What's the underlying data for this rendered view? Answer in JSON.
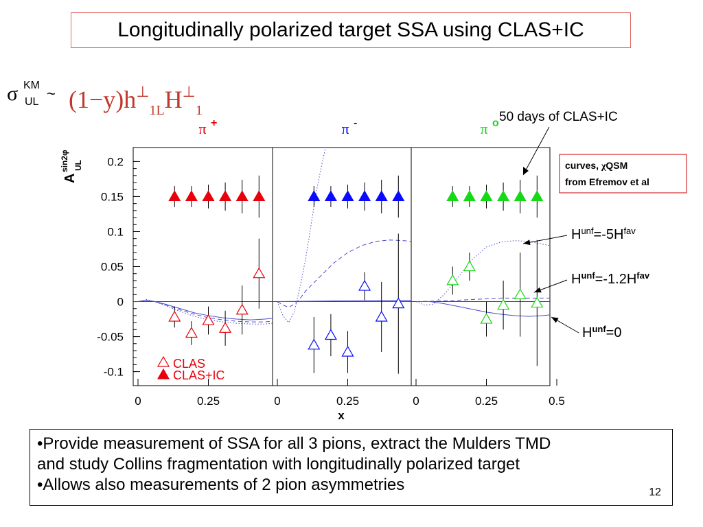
{
  "title": "Longitudinally polarized target SSA using CLAS+IC",
  "formula": {
    "sigma": "σ",
    "superscript": "KM",
    "subscript": "UL",
    "tilde": "~",
    "expression_main": "(1−y)h",
    "expression_sub": "1L",
    "expression_H": "H",
    "expression_H_sub": "1",
    "perp": "⊥"
  },
  "chart_data": {
    "type": "scatter",
    "ylabel": "A",
    "ylabel_sup": "sin2φ",
    "ylabel_sub": "UL",
    "xlabel": "x",
    "ylim": [
      -0.12,
      0.22
    ],
    "xlim": [
      0,
      0.5
    ],
    "y_ticks": [
      "0.2",
      "0.15",
      "0.1",
      "0.05",
      "0",
      "-0.05",
      "-0.1"
    ],
    "y_tick_values": [
      0.2,
      0.15,
      0.1,
      0.05,
      0,
      -0.05,
      -0.1
    ],
    "x_tick_values": [
      0,
      0.25
    ],
    "x_tick_labels": [
      "0",
      "0.25"
    ],
    "x_tick_values_last": [
      0,
      0.25,
      0.5
    ],
    "x_tick_labels_last": [
      "0",
      "0.25",
      "0.5"
    ],
    "panels": [
      {
        "label_base": "π",
        "label_sup": "+",
        "color": "#e8000b",
        "clas": {
          "x": [
            0.13,
            0.19,
            0.25,
            0.31,
            0.37,
            0.43
          ],
          "y": [
            -0.022,
            -0.045,
            -0.027,
            -0.038,
            -0.012,
            0.04
          ],
          "err": [
            0.015,
            0.017,
            0.02,
            0.025,
            0.035,
            0.05
          ]
        },
        "clas_ic": {
          "x": [
            0.13,
            0.19,
            0.25,
            0.31,
            0.37,
            0.43
          ],
          "y": [
            0.15,
            0.15,
            0.15,
            0.15,
            0.15,
            0.15
          ],
          "err": [
            0.015,
            0.015,
            0.017,
            0.02,
            0.024,
            0.03
          ]
        },
        "curves": {
          "h_unf_m5": {
            "x": [
              0,
              0.03,
              0.06,
              0.1,
              0.15,
              0.2,
              0.25,
              0.3,
              0.35,
              0.4,
              0.45,
              0.5
            ],
            "y": [
              0,
              0.003,
              0.0,
              -0.006,
              -0.014,
              -0.021,
              -0.026,
              -0.029,
              -0.031,
              -0.032,
              -0.032,
              -0.03
            ]
          },
          "h_unf_m1_2": {
            "x": [
              0,
              0.03,
              0.06,
              0.1,
              0.15,
              0.2,
              0.25,
              0.3,
              0.35,
              0.4,
              0.45,
              0.5
            ],
            "y": [
              0,
              0.002,
              0.0,
              -0.005,
              -0.012,
              -0.018,
              -0.023,
              -0.026,
              -0.028,
              -0.029,
              -0.029,
              -0.027
            ]
          },
          "h_unf_0": {
            "x": [
              0,
              0.03,
              0.06,
              0.1,
              0.15,
              0.2,
              0.25,
              0.3,
              0.35,
              0.4,
              0.45,
              0.5
            ],
            "y": [
              0,
              0.002,
              0.0,
              -0.004,
              -0.01,
              -0.016,
              -0.02,
              -0.023,
              -0.025,
              -0.026,
              -0.025,
              -0.023
            ]
          }
        }
      },
      {
        "label_base": "π",
        "label_sup": "-",
        "color": "#0a0aff",
        "clas": {
          "x": [
            0.13,
            0.19,
            0.25,
            0.31,
            0.37,
            0.43
          ],
          "y": [
            -0.062,
            -0.048,
            -0.072,
            0.022,
            -0.022,
            -0.003
          ],
          "err": [
            0.04,
            0.03,
            0.03,
            0.02,
            0.05,
            0.1
          ]
        },
        "clas_ic": {
          "x": [
            0.13,
            0.19,
            0.25,
            0.31,
            0.37,
            0.43
          ],
          "y": [
            0.15,
            0.15,
            0.15,
            0.15,
            0.15,
            0.15
          ],
          "err": [
            0.015,
            0.015,
            0.017,
            0.02,
            0.024,
            0.03
          ]
        },
        "curves": {
          "h_unf_m5": {
            "x": [
              0,
              0.02,
              0.04,
              0.06,
              0.08,
              0.1,
              0.12,
              0.14,
              0.16,
              0.18
            ],
            "y": [
              0,
              -0.02,
              -0.03,
              -0.015,
              0.02,
              0.06,
              0.11,
              0.16,
              0.2,
              0.235
            ]
          },
          "h_unf_m1_2": {
            "x": [
              0,
              0.02,
              0.04,
              0.06,
              0.08,
              0.1,
              0.15,
              0.2,
              0.25,
              0.3,
              0.35,
              0.4,
              0.45,
              0.5
            ],
            "y": [
              0,
              -0.005,
              -0.008,
              -0.004,
              0.004,
              0.015,
              0.035,
              0.055,
              0.07,
              0.08,
              0.086,
              0.088,
              0.087,
              0.085
            ]
          },
          "h_unf_0": {
            "x": [
              0,
              0.1,
              0.2,
              0.3,
              0.4,
              0.5
            ],
            "y": [
              0,
              0.0005,
              0.001,
              0.0015,
              0.002,
              0.002
            ]
          }
        }
      },
      {
        "label_base": "π",
        "label_sup": "o",
        "color": "#14d914",
        "clas": {
          "x": [
            0.13,
            0.19,
            0.25,
            0.31,
            0.37,
            0.43
          ],
          "y": [
            0.03,
            0.05,
            -0.025,
            -0.005,
            0.01,
            -0.002
          ],
          "err": [
            0.02,
            0.02,
            0.025,
            0.035,
            0.06,
            0.09
          ]
        },
        "clas_ic": {
          "x": [
            0.13,
            0.19,
            0.25,
            0.31,
            0.37,
            0.43
          ],
          "y": [
            0.15,
            0.15,
            0.15,
            0.15,
            0.15,
            0.15
          ],
          "err": [
            0.015,
            0.015,
            0.017,
            0.02,
            0.024,
            0.03
          ]
        },
        "curves": {
          "h_unf_m5": {
            "x": [
              0,
              0.03,
              0.06,
              0.1,
              0.15,
              0.2,
              0.25,
              0.3,
              0.35,
              0.4,
              0.45,
              0.5
            ],
            "y": [
              0,
              -0.005,
              -0.004,
              0.01,
              0.035,
              0.06,
              0.078,
              0.085,
              0.087,
              0.086,
              0.082,
              0.078
            ]
          },
          "h_unf_m1_2": {
            "x": [
              0,
              0.05,
              0.1,
              0.15,
              0.2,
              0.25,
              0.3,
              0.35,
              0.4,
              0.45,
              0.5
            ],
            "y": [
              0,
              0.0005,
              0.001,
              0.002,
              0.003,
              0.004,
              0.005,
              0.005,
              0.005,
              0.005,
              0.005
            ]
          },
          "h_unf_0": {
            "x": [
              0,
              0.05,
              0.1,
              0.15,
              0.2,
              0.25,
              0.3,
              0.35,
              0.4,
              0.45,
              0.5
            ],
            "y": [
              0,
              0.0,
              -0.003,
              -0.007,
              -0.011,
              -0.015,
              -0.018,
              -0.02,
              -0.021,
              -0.02,
              -0.018
            ]
          }
        }
      }
    ],
    "legend": {
      "items": [
        {
          "marker": "open-triangle",
          "label": "CLAS"
        },
        {
          "marker": "filled-triangle",
          "label": "CLAS+IC"
        }
      ],
      "color": "#e8000b"
    },
    "annotations": {
      "days_label": "50 days of CLAS+IC",
      "curves_box_line1_prefix": "curves, ",
      "curves_box_line1_chi": "χ",
      "curves_box_line1_suffix": "QSM",
      "curves_box_line2": "from Efremov et al",
      "h_labels": [
        {
          "base": "H",
          "sup": "unf",
          "mid": "=-5H",
          "sup2": "fav"
        },
        {
          "base": "H",
          "sup": "unf",
          "mid": "=-1.2H",
          "sup2": "fav"
        },
        {
          "base": "H",
          "sup": "unf",
          "mid": "=0",
          "sup2": ""
        }
      ]
    }
  },
  "bottom": {
    "line1": "•Provide measurement of SSA for all 3 pions, extract the Mulders TMD",
    "line2": "and study Collins fragmentation with longitudinally  polarized target",
    "line3": "•Allows also  measurements of 2 pion asymmetries"
  },
  "page_number": "12"
}
